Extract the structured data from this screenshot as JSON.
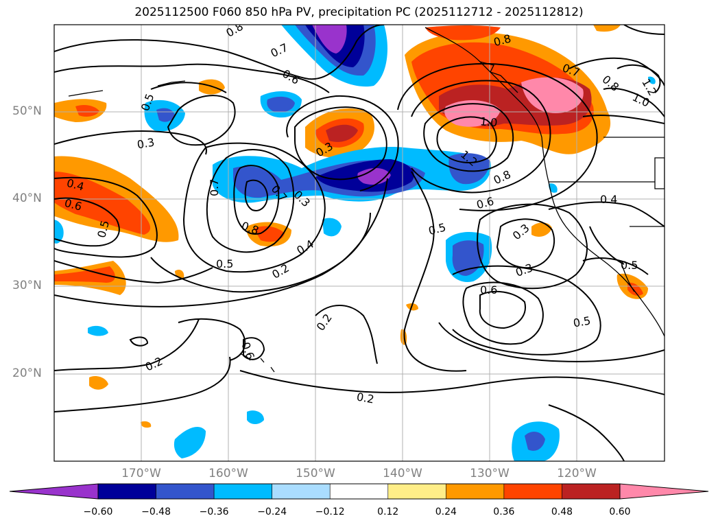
{
  "title": "2025112500 F060 850 hPa PV, precipitation PC (2025112712 - 2025112812)",
  "lat_labels": [
    "50°N",
    "40°N",
    "30°N",
    "20°N"
  ],
  "lon_labels": [
    "170°W",
    "160°W",
    "150°W",
    "140°W",
    "130°W",
    "120°W"
  ],
  "colorbar": {
    "ticks": [
      "−0.60",
      "−0.48",
      "−0.36",
      "−0.24",
      "−0.12",
      "0.12",
      "0.24",
      "0.36",
      "0.48",
      "0.60"
    ],
    "colors": [
      "#9933cc",
      "#000099",
      "#3355cc",
      "#00bbff",
      "#aaddff",
      "#ffffff",
      "#ffee88",
      "#ff9900",
      "#ff4400",
      "#bb2222",
      "#ff88aa"
    ]
  },
  "contour_labels": [
    "0.8",
    "0.7",
    "0.6",
    "0.5",
    "0.3",
    "0.4",
    "0.6",
    "0.5",
    "0.3",
    "0.8",
    "0.7",
    "0.5",
    "0.2",
    "0.3",
    "0.2",
    "0.2",
    "0.6",
    "0.7",
    "0.5",
    "0.4",
    "0.3",
    "0.6",
    "0.8",
    "1.0",
    "1.2",
    "0.8",
    "0.7",
    "0.8",
    "1.0",
    "1.2",
    "0.4",
    "0.3",
    "0.5",
    "0.2",
    "0.6",
    "0.5"
  ]
}
